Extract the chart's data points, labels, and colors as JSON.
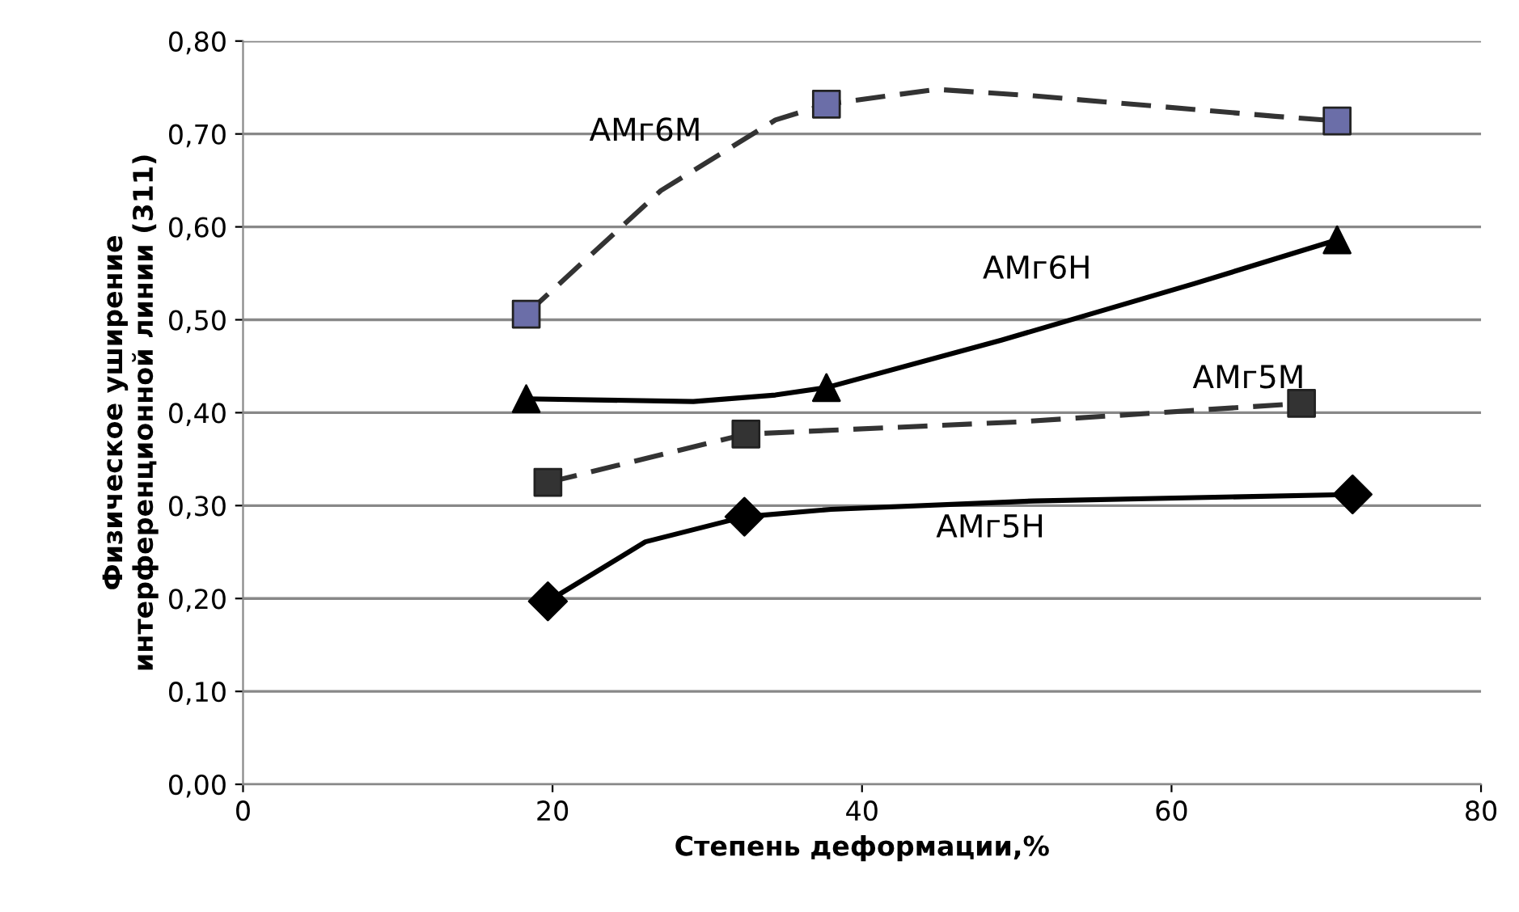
{
  "chart_data": {
    "type": "line",
    "xlabel": "Степень деформации,%",
    "ylabel": "Физическое уширение\nинтерференционной линии (311)",
    "xlim": [
      0,
      80
    ],
    "xticks": [
      0,
      20,
      40,
      60,
      80
    ],
    "ylim": [
      0,
      0.8
    ],
    "yticks": [
      {
        "value": 0,
        "label": "0,00"
      },
      {
        "value": 0.1,
        "label": "0,10"
      },
      {
        "value": 0.2,
        "label": "0,20"
      },
      {
        "value": 0.3,
        "label": "0,30"
      },
      {
        "value": 0.4,
        "label": "0,40"
      },
      {
        "value": 0.5,
        "label": "0,50"
      },
      {
        "value": 0.6,
        "label": "0,60"
      },
      {
        "value": 0.7,
        "label": "0,70"
      },
      {
        "value": 0.8,
        "label": "0,80"
      }
    ],
    "grid": "y",
    "legend": false,
    "series": [
      {
        "name": "АМг6М",
        "color": "#333333",
        "line_style": "dashed",
        "marker": "none",
        "x": [
          18.3,
          27,
          34.4,
          37.7,
          44.8,
          51.1,
          66.7,
          70.7
        ],
        "values": [
          0.506,
          0.639,
          0.715,
          0.732,
          0.748,
          0.741,
          0.719,
          0.714
        ]
      },
      {
        "type": "scatter",
        "color": "#6b6ea8",
        "marker": "square",
        "x": [
          18.3,
          37.7,
          70.7
        ],
        "values": [
          0.506,
          0.732,
          0.714
        ]
      },
      {
        "name": "АМг6Н",
        "color": "#000000",
        "line_style": "solid",
        "marker": "none",
        "x": [
          18.3,
          29.1,
          34.4,
          37.7,
          49,
          61.5,
          70.7
        ],
        "values": [
          0.415,
          0.412,
          0.419,
          0.427,
          0.478,
          0.539,
          0.586
        ]
      },
      {
        "type": "scatter",
        "color": "#000000",
        "marker": "triangle",
        "x": [
          18.3,
          37.7,
          70.7
        ],
        "values": [
          0.415,
          0.427,
          0.586
        ]
      },
      {
        "name": "АМг5М",
        "color": "#333333",
        "line_style": "dashed",
        "marker": "none",
        "x": [
          19.7,
          32.5,
          50,
          68.4
        ],
        "values": [
          0.325,
          0.377,
          0.39,
          0.41
        ]
      },
      {
        "type": "scatter",
        "color": "#333333",
        "marker": "square",
        "x": [
          19.7,
          32.5,
          68.4
        ],
        "values": [
          0.325,
          0.377,
          0.41
        ]
      },
      {
        "name": "АМг5Н",
        "color": "#000000",
        "line_style": "solid",
        "marker": "none",
        "x": [
          19.7,
          26,
          32.4,
          38,
          51.1,
          71.7
        ],
        "values": [
          0.197,
          0.261,
          0.288,
          0.296,
          0.305,
          0.312
        ]
      },
      {
        "type": "scatter",
        "color": "#000000",
        "marker": "diamond",
        "x": [
          19.7,
          32.4,
          71.7
        ],
        "values": [
          0.197,
          0.288,
          0.312
        ]
      }
    ]
  }
}
